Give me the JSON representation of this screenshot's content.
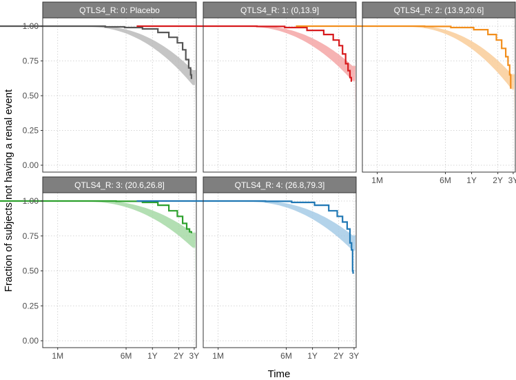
{
  "chart_data": {
    "type": "line",
    "subtype": "kaplan-meier survival with confidence bands, faceted",
    "xlabel": "Time",
    "ylabel": "Fraction of subjects not having a renal event",
    "x_scale": "log",
    "x_ticks": [
      "1M",
      "6M",
      "1Y",
      "2Y",
      "3Y"
    ],
    "y_ticks": [
      "0.00",
      "0.25",
      "0.50",
      "0.75",
      "1.00"
    ],
    "ylim": [
      0,
      1
    ],
    "grid": "dotted",
    "panels": [
      {
        "label": "QTLS4_R: 0: Placebo",
        "color": "#555555",
        "band_color": "#bbbbbb",
        "steps": [
          [
            0.5,
            1.0
          ],
          [
            10,
            1.0
          ],
          [
            15,
            0.995
          ],
          [
            25,
            0.99
          ],
          [
            40,
            0.98
          ],
          [
            60,
            0.955
          ],
          [
            80,
            0.92
          ],
          [
            100,
            0.88
          ],
          [
            115,
            0.83
          ],
          [
            125,
            0.76
          ],
          [
            135,
            0.7
          ],
          [
            142,
            0.65
          ],
          [
            145,
            0.62
          ]
        ],
        "model": {
          "start": 0.999,
          "mid": 0.98,
          "end": 0.63,
          "tail": 0.42
        }
      },
      {
        "label": "QTLS4_R: 1: (0,13.9]",
        "color": "#d7191c",
        "band_color": "#f4a6a6",
        "steps": [
          [
            0.5,
            1.0
          ],
          [
            12,
            0.998
          ],
          [
            25,
            0.99
          ],
          [
            45,
            0.97
          ],
          [
            70,
            0.94
          ],
          [
            90,
            0.9
          ],
          [
            105,
            0.86
          ],
          [
            115,
            0.8
          ],
          [
            125,
            0.73
          ],
          [
            133,
            0.68
          ],
          [
            140,
            0.63
          ],
          [
            145,
            0.6
          ]
        ],
        "model": {
          "start": 0.999,
          "mid": 0.98,
          "end": 0.66,
          "tail": 0.36
        }
      },
      {
        "label": "QTLS4_R: 2: (13.9,20.6]",
        "color": "#f28e1c",
        "band_color": "#f9cc99",
        "steps": [
          [
            0.5,
            1.0
          ],
          [
            15,
            0.998
          ],
          [
            30,
            0.99
          ],
          [
            55,
            0.975
          ],
          [
            80,
            0.94
          ],
          [
            100,
            0.9
          ],
          [
            115,
            0.84
          ],
          [
            128,
            0.78
          ],
          [
            136,
            0.72
          ],
          [
            142,
            0.65
          ],
          [
            146,
            0.55
          ]
        ],
        "model": {
          "start": 0.999,
          "mid": 0.985,
          "end": 0.6,
          "tail": 0.29
        }
      },
      {
        "label": "QTLS4_R: 3: (20.6,26.8]",
        "color": "#2ca02c",
        "band_color": "#a6d9a6",
        "steps": [
          [
            0.5,
            1.0
          ],
          [
            20,
            0.998
          ],
          [
            40,
            0.99
          ],
          [
            60,
            0.97
          ],
          [
            80,
            0.93
          ],
          [
            100,
            0.89
          ],
          [
            115,
            0.84
          ],
          [
            128,
            0.8
          ],
          [
            138,
            0.78
          ],
          [
            145,
            0.77
          ]
        ],
        "model": {
          "start": 0.999,
          "mid": 0.985,
          "end": 0.72,
          "tail": 0.36
        }
      },
      {
        "label": "QTLS4_R: 4: (26.8,79.3]",
        "color": "#1f77b4",
        "band_color": "#a6cbe6",
        "steps": [
          [
            0.5,
            1.0
          ],
          [
            15,
            0.998
          ],
          [
            30,
            0.99
          ],
          [
            55,
            0.97
          ],
          [
            80,
            0.93
          ],
          [
            100,
            0.89
          ],
          [
            115,
            0.85
          ],
          [
            130,
            0.8
          ],
          [
            140,
            0.7
          ],
          [
            146,
            0.65
          ],
          [
            150,
            0.5
          ],
          [
            152,
            0.48
          ]
        ],
        "model": {
          "start": 0.999,
          "mid": 0.985,
          "end": 0.7,
          "tail": 0.03
        }
      }
    ]
  }
}
